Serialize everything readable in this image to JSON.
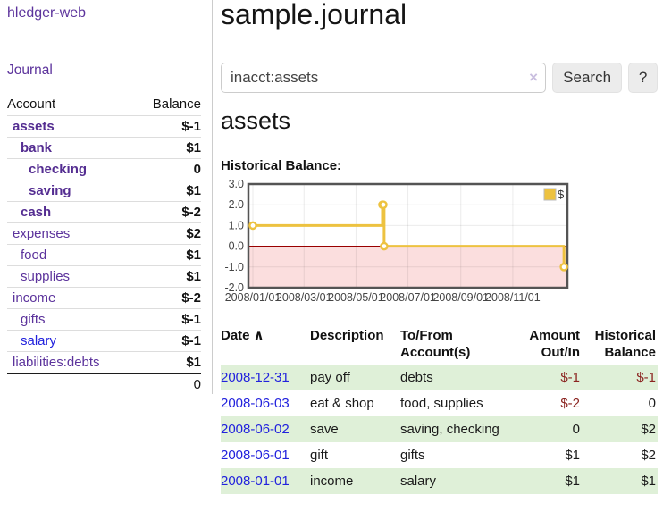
{
  "brand": "hledger-web",
  "nav": {
    "journal": "Journal"
  },
  "palette": {
    "link_purple": "#5c339c",
    "link_purple_bold": "#542d91",
    "link_blue": "#2222dd",
    "negative_strong": "#8b2420",
    "negative_soft": "#c47a76",
    "row_stripe_green": "#dff0d8",
    "button_bg": "#ececec"
  },
  "sidebar": {
    "col_account": "Account",
    "col_balance": "Balance",
    "accounts": [
      {
        "name": "assets",
        "balance": "$-1",
        "indent": 1,
        "bold": true,
        "amount_style": "neg-strong",
        "link_style": "purple"
      },
      {
        "name": "bank",
        "balance": "$1",
        "indent": 2,
        "bold": true,
        "amount_style": "pos",
        "link_style": "purple"
      },
      {
        "name": "checking",
        "balance": "0",
        "indent": 3,
        "bold": true,
        "amount_style": "pos",
        "link_style": "purple"
      },
      {
        "name": "saving",
        "balance": "$1",
        "indent": 3,
        "bold": true,
        "amount_style": "pos",
        "link_style": "purple"
      },
      {
        "name": "cash",
        "balance": "$-2",
        "indent": 2,
        "bold": true,
        "amount_style": "neg-strong",
        "link_style": "purple"
      },
      {
        "name": "expenses",
        "balance": "$2",
        "indent": 1,
        "bold": false,
        "amount_style": "pos",
        "link_style": "purple"
      },
      {
        "name": "food",
        "balance": "$1",
        "indent": 2,
        "bold": false,
        "amount_style": "pos",
        "link_style": "purple"
      },
      {
        "name": "supplies",
        "balance": "$1",
        "indent": 2,
        "bold": false,
        "amount_style": "pos",
        "link_style": "purple"
      },
      {
        "name": "income",
        "balance": "$-2",
        "indent": 1,
        "bold": false,
        "amount_style": "neg-soft",
        "link_style": "purple"
      },
      {
        "name": "gifts",
        "balance": "$-1",
        "indent": 2,
        "bold": false,
        "amount_style": "neg-soft",
        "link_style": "purple"
      },
      {
        "name": "salary",
        "balance": "$-1",
        "indent": 2,
        "bold": false,
        "amount_style": "neg-soft",
        "link_style": "blue"
      },
      {
        "name": "liabilities:debts",
        "balance": "$1",
        "indent": 1,
        "bold": false,
        "amount_style": "pos",
        "link_style": "purple"
      }
    ],
    "total": "0"
  },
  "main": {
    "title": "sample.journal",
    "search": {
      "value": "inacct:assets",
      "clear_icon": "×",
      "search_button": "Search",
      "help_button": "?"
    },
    "account_heading": "assets",
    "chart_title": "Historical Balance:"
  },
  "chart_data": {
    "type": "line",
    "step": true,
    "title": "Historical Balance:",
    "series": [
      {
        "name": "$",
        "color": "#EDC240",
        "points": [
          [
            "2008/01/01",
            1
          ],
          [
            "2008/06/01",
            2
          ],
          [
            "2008/06/02",
            2
          ],
          [
            "2008/06/03",
            0
          ],
          [
            "2008/12/31",
            -1
          ]
        ]
      }
    ],
    "ylim": [
      -2,
      3
    ],
    "yticks": [
      "3.0",
      "2.0",
      "1.0",
      "0.0",
      "-1.0",
      "-2.0"
    ],
    "xticks": [
      "2008/01/01",
      "2008/03/01",
      "2008/05/01",
      "2008/07/01",
      "2008/09/01",
      "2008/11/01"
    ],
    "grid": true,
    "legend": "$",
    "legend_position": "top-right",
    "negative_region_color": "#fbdede",
    "zero_line_color": "#990000",
    "border_color": "#545454",
    "gridline_color": "rgba(0,0,0,0.08)",
    "tick_color": "#444444"
  },
  "register": {
    "sort_icon": "∧",
    "headers": {
      "date": "Date",
      "description": "Description",
      "tofrom_1": "To/From",
      "tofrom_2": "Account(s)",
      "amount_1": "Amount",
      "amount_2": "Out/In",
      "hist_1": "Historical",
      "hist_2": "Balance"
    },
    "rows": [
      {
        "date": "2008-12-31",
        "description": "pay off",
        "accounts": "debts",
        "amount": "$-1",
        "balance": "$-1",
        "amount_neg": true,
        "balance_neg": true
      },
      {
        "date": "2008-06-03",
        "description": "eat & shop",
        "accounts": "food, supplies",
        "amount": "$-2",
        "balance": "0",
        "amount_neg": true,
        "balance_neg": false
      },
      {
        "date": "2008-06-02",
        "description": "save",
        "accounts": "saving, checking",
        "amount": "0",
        "balance": "$2",
        "amount_neg": false,
        "balance_neg": false
      },
      {
        "date": "2008-06-01",
        "description": "gift",
        "accounts": "gifts",
        "amount": "$1",
        "balance": "$2",
        "amount_neg": false,
        "balance_neg": false
      },
      {
        "date": "2008-01-01",
        "description": "income",
        "accounts": "salary",
        "amount": "$1",
        "balance": "$1",
        "amount_neg": false,
        "balance_neg": false
      }
    ]
  }
}
